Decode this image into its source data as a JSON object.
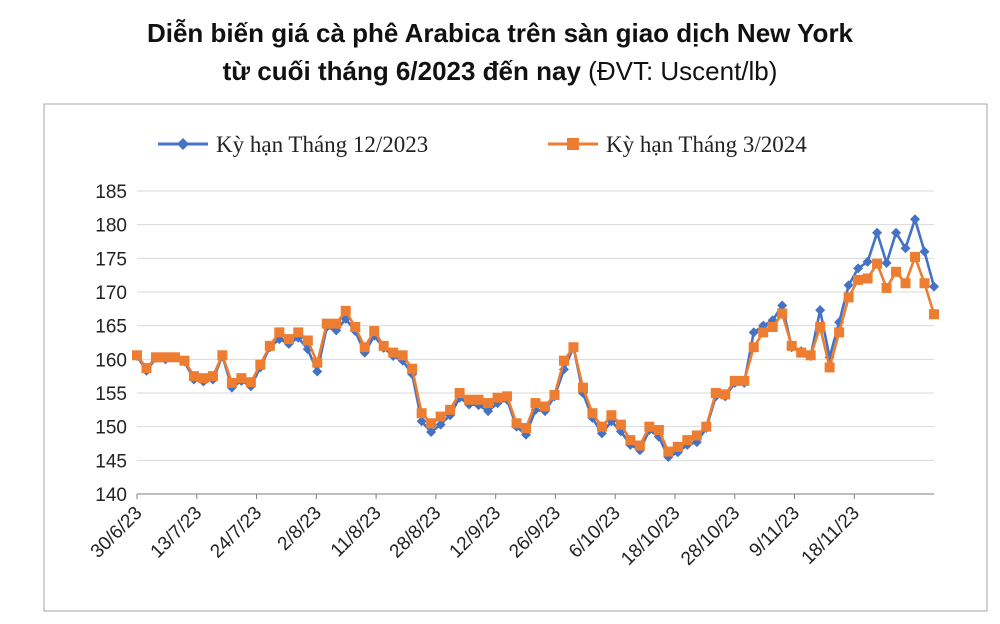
{
  "title_line1": "Diễn biến giá cà phê Arabica trên sàn giao dịch New York",
  "title_line2_bold": "từ cuối tháng 6/2023 đến nay",
  "title_line2_unit": " (ĐVT: Uscent/lb)",
  "chart_data": {
    "type": "line",
    "ylim": [
      140,
      185
    ],
    "yticks": [
      140,
      145,
      150,
      155,
      160,
      165,
      170,
      175,
      180,
      185
    ],
    "xtick_labels": [
      "30/6/23",
      "13/7/23",
      "24/7/23",
      "2/8/23",
      "11/8/23",
      "28/8/23",
      "12/9/23",
      "26/9/23",
      "6/10/23",
      "18/10/23",
      "28/10/23",
      "9/11/23",
      "18/11/23"
    ],
    "xtick_positions": [
      0,
      6.3,
      12.6,
      18.9,
      25.2,
      31.5,
      37.8,
      44.1,
      50.4,
      56.7,
      63,
      69.3,
      75.6
    ],
    "legend_position": "top",
    "series": [
      {
        "name": "Kỳ hạn Tháng 12/2023",
        "color": "#4472C4",
        "marker": "diamond",
        "values": [
          160.5,
          158.3,
          160.2,
          160.0,
          160.3,
          159.7,
          157.0,
          156.7,
          157.0,
          160.5,
          155.8,
          156.8,
          156.0,
          158.8,
          161.8,
          163.0,
          162.3,
          163.2,
          161.5,
          158.2,
          164.8,
          164.3,
          166.0,
          164.2,
          161.0,
          163.5,
          161.7,
          160.5,
          159.8,
          157.8,
          150.8,
          149.2,
          150.3,
          151.7,
          154.3,
          153.3,
          153.2,
          152.3,
          153.5,
          154.0,
          150.0,
          148.8,
          152.5,
          152.3,
          154.5,
          158.5,
          161.8,
          155.0,
          151.3,
          149.0,
          150.8,
          149.3,
          147.3,
          146.5,
          149.5,
          148.5,
          145.5,
          146.2,
          147.3,
          147.7,
          149.8,
          154.5,
          154.5,
          156.5,
          156.5,
          164.0,
          165.0,
          165.8,
          168.0,
          161.8,
          161.2,
          160.5,
          167.3,
          160.3,
          165.5,
          171.0,
          173.5,
          174.5,
          178.8,
          174.3,
          178.8,
          176.5,
          180.8,
          176.0,
          170.8
        ]
      },
      {
        "name": "Kỳ hạn Tháng 3/2024",
        "color": "#ED7D31",
        "marker": "square",
        "values": [
          160.6,
          158.7,
          160.3,
          160.3,
          160.3,
          159.8,
          157.5,
          157.2,
          157.5,
          160.6,
          156.5,
          157.2,
          156.6,
          159.2,
          162.0,
          164.0,
          163.0,
          164.0,
          162.8,
          159.5,
          165.3,
          165.3,
          167.2,
          164.8,
          161.8,
          164.2,
          162.0,
          161.0,
          160.6,
          158.6,
          152.0,
          150.5,
          151.5,
          152.5,
          155.0,
          154.0,
          154.0,
          153.5,
          154.3,
          154.5,
          150.5,
          149.8,
          153.5,
          153.0,
          154.7,
          159.8,
          161.8,
          155.8,
          152.0,
          150.0,
          151.7,
          150.3,
          148.0,
          147.2,
          150.0,
          149.5,
          146.3,
          147.0,
          148.0,
          148.7,
          150.0,
          155.0,
          154.8,
          156.8,
          156.8,
          161.8,
          164.0,
          164.8,
          166.8,
          162.0,
          161.0,
          160.6,
          164.8,
          158.8,
          164.0,
          169.2,
          171.8,
          172.0,
          174.2,
          170.6,
          173.0,
          171.3,
          175.2,
          171.3,
          166.7
        ]
      }
    ]
  }
}
